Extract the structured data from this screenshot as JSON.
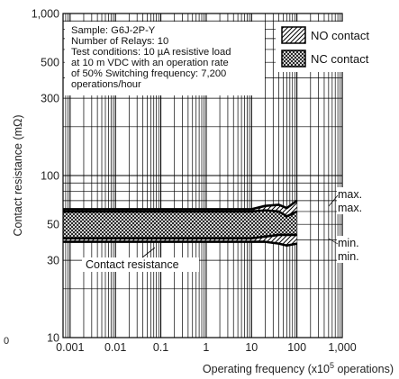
{
  "chart_data": {
    "type": "line",
    "xscale": "log",
    "yscale": "log",
    "xlim": [
      0.0007,
      1000
    ],
    "ylim": [
      10,
      1000
    ],
    "grid": true,
    "xlabel": "Operating frequency (x10",
    "xlabel_exp": "5",
    "xlabel_tail": " operations)",
    "ylabel": "Contact resistance (mΩ)",
    "xticks": [
      {
        "value": 0.001,
        "label": "0.001"
      },
      {
        "value": 0.01,
        "label": "0.01"
      },
      {
        "value": 0.1,
        "label": "0.1"
      },
      {
        "value": 1,
        "label": "1"
      },
      {
        "value": 10,
        "label": "10"
      },
      {
        "value": 100,
        "label": "100"
      },
      {
        "value": 1000,
        "label": "1,000"
      }
    ],
    "yticks": [
      {
        "value": 1000,
        "label": "1,000"
      },
      {
        "value": 500,
        "label": "500"
      },
      {
        "value": 300,
        "label": "300"
      },
      {
        "value": 100,
        "label": "100"
      },
      {
        "value": 50,
        "label": "50"
      },
      {
        "value": 30,
        "label": "30"
      },
      {
        "value": 10,
        "label": "10"
      }
    ],
    "stray_label": "0",
    "notes": [
      "Sample: G6J-2P-Y",
      "Number of Relays: 10",
      "Test conditions: 10 µA resistive load",
      "at 10 m VDC with an operation rate",
      "of 50% Switching frequency: 7,200",
      "operations/hour"
    ],
    "legend": {
      "placement": "top-right",
      "entries": [
        {
          "name": "NO contact",
          "pattern": "hatch-forward"
        },
        {
          "name": "NC contact",
          "pattern": "crosshatch"
        }
      ]
    },
    "annotations": {
      "band_label": "Contact resistance",
      "max_label": "max.",
      "min_label": "min."
    },
    "series": [
      {
        "x": [
          0.0007,
          0.01,
          1,
          10,
          20,
          40,
          60,
          100
        ],
        "values": [
          62,
          62,
          62,
          62,
          65,
          66,
          63,
          70
        ]
      },
      {
        "x": [
          0.0007,
          0.01,
          1,
          10,
          20,
          40,
          60,
          100
        ],
        "values": [
          60,
          60,
          60,
          60,
          61,
          60,
          56,
          60
        ]
      },
      {
        "x": [
          0.0007,
          0.01,
          1,
          10,
          20,
          40,
          60,
          100
        ],
        "values": [
          41,
          41,
          41,
          41,
          42,
          43,
          43,
          43
        ]
      },
      {
        "x": [
          0.0007,
          0.01,
          1,
          10,
          20,
          40,
          60,
          100
        ],
        "values": [
          39,
          39,
          39,
          39,
          39,
          38,
          37,
          38
        ]
      }
    ]
  }
}
